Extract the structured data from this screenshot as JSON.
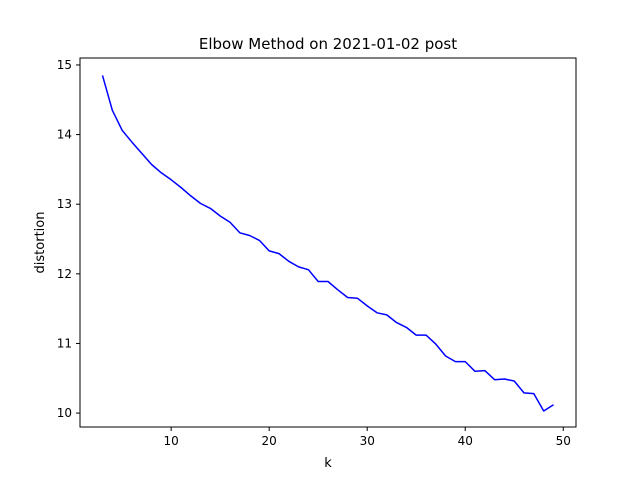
{
  "chart_data": {
    "type": "line",
    "title": "Elbow Method on 2021-01-02 post",
    "xlabel": "k",
    "ylabel": "distortion",
    "xlim": [
      0.7,
      51.3
    ],
    "ylim": [
      9.8,
      15.1
    ],
    "xticks": [
      10,
      20,
      30,
      40,
      50
    ],
    "yticks": [
      10,
      11,
      12,
      13,
      14,
      15
    ],
    "grid": false,
    "legend": "none",
    "series": [
      {
        "color": "#0000ff",
        "x": [
          3,
          4,
          5,
          6,
          7,
          8,
          9,
          10,
          11,
          12,
          13,
          14,
          15,
          16,
          17,
          18,
          19,
          20,
          21,
          22,
          23,
          24,
          25,
          26,
          27,
          28,
          29,
          30,
          31,
          32,
          33,
          34,
          35,
          36,
          37,
          38,
          39,
          40,
          41,
          42,
          43,
          44,
          45,
          46,
          47,
          48,
          49
        ],
        "y": [
          14.85,
          14.35,
          14.06,
          13.89,
          13.73,
          13.57,
          13.45,
          13.35,
          13.24,
          13.12,
          13.01,
          12.94,
          12.83,
          12.74,
          12.59,
          12.55,
          12.48,
          12.33,
          12.29,
          12.18,
          12.1,
          12.06,
          11.89,
          11.89,
          11.77,
          11.66,
          11.65,
          11.54,
          11.44,
          11.41,
          11.3,
          11.23,
          11.12,
          11.12,
          10.99,
          10.82,
          10.74,
          10.74,
          10.6,
          10.61,
          10.48,
          10.49,
          10.46,
          10.29,
          10.28,
          10.03,
          10.12
        ]
      }
    ]
  }
}
